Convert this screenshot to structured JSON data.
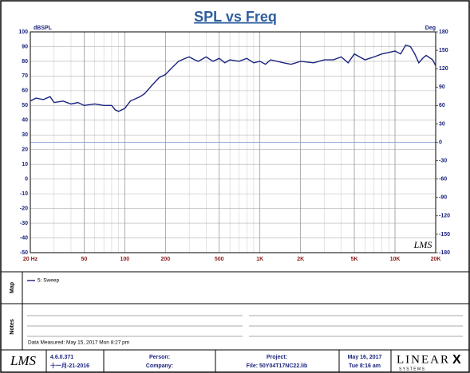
{
  "chart_data": {
    "type": "line",
    "title": "SPL vs Freq",
    "y_label": "dBSPL",
    "y2_label": "Deg",
    "watermark": "LMS",
    "xscale": "log",
    "grid": true,
    "xlim": [
      20,
      20000
    ],
    "xticks": [
      {
        "value": 20,
        "label": "20 Hz"
      },
      50,
      100,
      200,
      500,
      {
        "value": 1000,
        "label": "1K"
      },
      {
        "value": 2000,
        "label": "2K"
      },
      {
        "value": 5000,
        "label": "5K"
      },
      {
        "value": 10000,
        "label": "10K"
      },
      {
        "value": 20000,
        "label": "20K"
      }
    ],
    "ylim": [
      -50,
      100
    ],
    "yticks": [
      -50,
      -40,
      -30,
      -20,
      -10,
      0,
      10,
      20,
      30,
      40,
      50,
      60,
      70,
      80,
      90,
      100
    ],
    "y2lim": [
      -180,
      180
    ],
    "y2ticks": [
      -180,
      -150,
      -120,
      -90,
      -60,
      -30,
      0,
      30,
      60,
      90,
      120,
      150,
      180
    ],
    "series": [
      {
        "name": "5: Sweep",
        "color": "#1a237e",
        "x": [
          20,
          22,
          25,
          28,
          30,
          35,
          40,
          45,
          50,
          60,
          70,
          80,
          85,
          90,
          100,
          110,
          130,
          140,
          160,
          180,
          200,
          220,
          250,
          280,
          300,
          330,
          350,
          400,
          450,
          500,
          550,
          600,
          700,
          800,
          900,
          1000,
          1100,
          1200,
          1500,
          1700,
          2000,
          2500,
          3000,
          3500,
          4000,
          4500,
          5000,
          6000,
          7000,
          8000,
          9000,
          10000,
          11000,
          12000,
          13000,
          14000,
          15000,
          16000,
          17000,
          19000,
          20000
        ],
        "values": [
          53,
          55,
          54,
          56,
          52,
          53,
          51,
          52,
          50,
          51,
          50,
          50,
          47,
          46,
          48,
          53,
          56,
          58,
          64,
          69,
          71,
          75,
          80,
          82,
          83,
          81,
          80,
          83,
          80,
          82,
          79,
          81,
          80,
          82,
          79,
          80,
          78,
          81,
          79,
          78,
          80,
          79,
          81,
          81,
          83,
          79,
          85,
          81,
          83,
          85,
          86,
          87,
          85,
          91,
          90,
          85,
          79,
          82,
          84,
          81,
          77
        ]
      }
    ]
  },
  "map_panel": {
    "label": "Map"
  },
  "notes_panel": {
    "label": "Notes",
    "text": "Data Measured: May 15, 2017  Mon  8:27 pm"
  },
  "footer": {
    "logo": "LMS",
    "version": "4.6.0.371",
    "build_date": "十一月-21-2016",
    "person": "Person:",
    "company": "Company:",
    "project": "Project:",
    "file": "File: 50Y04T17NC22.lib",
    "date": "May 16, 2017",
    "time": "Tue  8:16 am",
    "brand": "LINEAR",
    "brand_x": "X",
    "brand_sub": "S Y S T E M S"
  }
}
